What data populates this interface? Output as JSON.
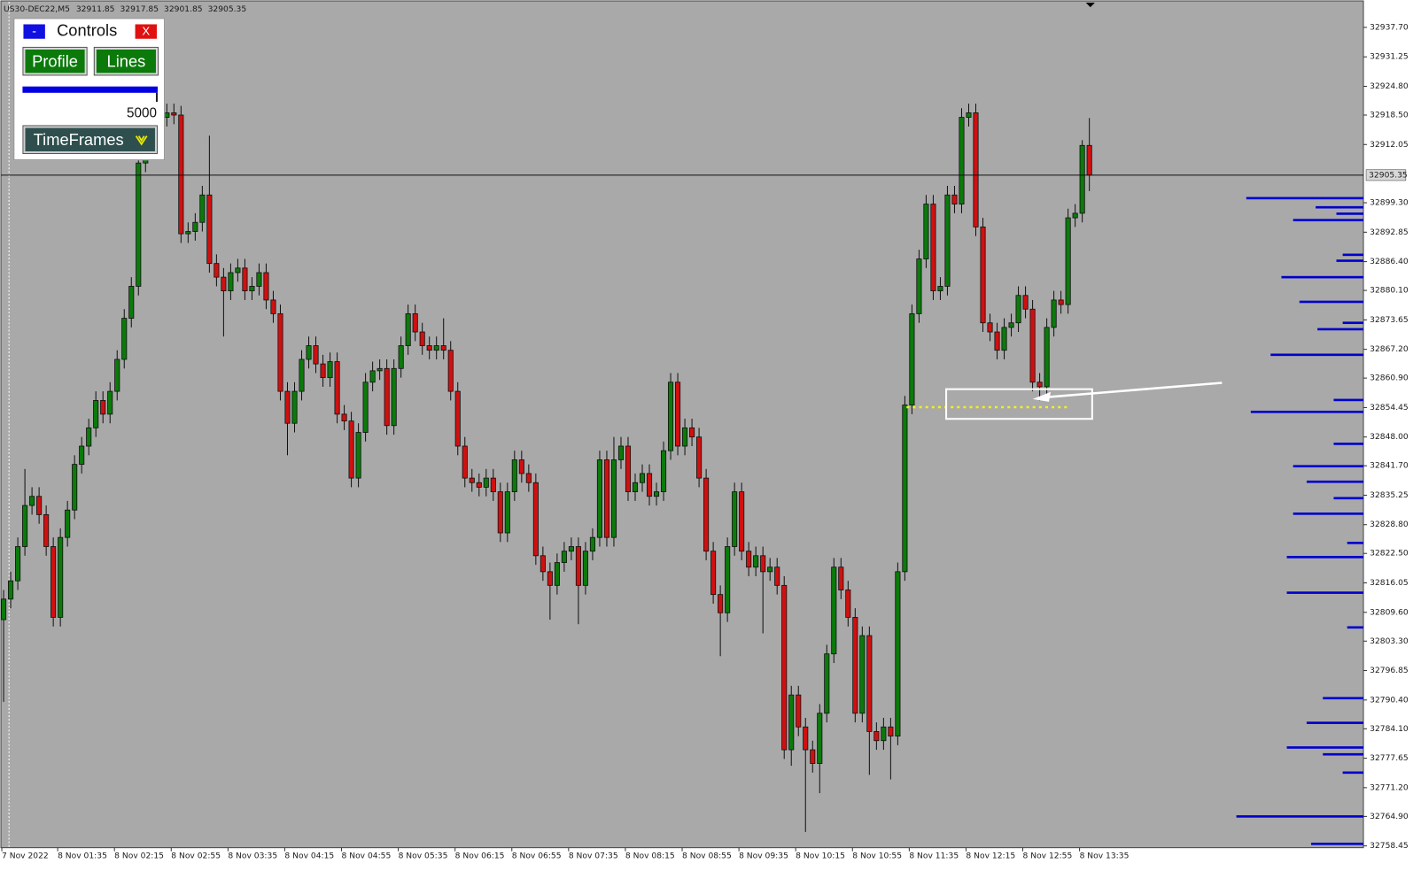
{
  "chart_data": {
    "type": "candlestick",
    "title": "US30-DEC22,M5",
    "categories": [
      "7 Nov 2022",
      null,
      null,
      null,
      null,
      null,
      null,
      null,
      "8 Nov 01:35",
      null,
      null,
      null,
      null,
      null,
      null,
      null,
      "8 Nov 02:15",
      null,
      null,
      null,
      null,
      null,
      null,
      null,
      "8 Nov 02:55",
      null,
      null,
      null,
      null,
      null,
      null,
      null,
      "8 Nov 03:35",
      null,
      null,
      null,
      null,
      null,
      null,
      null,
      "8 Nov 04:15",
      null,
      null,
      null,
      null,
      null,
      null,
      null,
      "8 Nov 04:55",
      null,
      null,
      null,
      null,
      null,
      null,
      null,
      "8 Nov 05:35",
      null,
      null,
      null,
      null,
      null,
      null,
      null,
      "8 Nov 06:15",
      null,
      null,
      null,
      null,
      null,
      null,
      null,
      "8 Nov 06:55",
      null,
      null,
      null,
      null,
      null,
      null,
      null,
      "8 Nov 07:35",
      null,
      null,
      null,
      null,
      null,
      null,
      null,
      "8 Nov 08:15",
      null,
      null,
      null,
      null,
      null,
      null,
      null,
      "8 Nov 08:55",
      null,
      null,
      null,
      null,
      null,
      null,
      null,
      "8 Nov 09:35",
      null,
      null,
      null,
      null,
      null,
      null,
      null,
      "8 Nov 10:15",
      null,
      null,
      null,
      null,
      null,
      null,
      null,
      "8 Nov 10:55",
      null,
      null,
      null,
      null,
      null,
      null,
      null,
      "8 Nov 11:35",
      null,
      null,
      null,
      null,
      null,
      null,
      null,
      "8 Nov 12:15",
      null,
      null,
      null,
      null,
      null,
      null,
      null,
      "8 Nov 12:55",
      null,
      null,
      null,
      null,
      null,
      null,
      null,
      "8 Nov 13:35",
      null
    ],
    "open": [
      32808,
      32812.5,
      32816.5,
      32824,
      32833,
      32835,
      32831,
      32824,
      32808.5,
      32826,
      32832,
      32842,
      32846,
      32850,
      32856,
      32853,
      32858,
      32865,
      32874,
      32881,
      32908,
      32914,
      32916,
      32918,
      32919,
      32918.5,
      32892.5,
      32893,
      32895,
      32901,
      32886,
      32883,
      32880,
      32884,
      32885,
      32880,
      32881,
      32884,
      32878,
      32875,
      32858,
      32851,
      32858,
      32865,
      32868,
      32864,
      32861,
      32864.5,
      32853,
      32851.5,
      32839,
      32849,
      32860,
      32862.5,
      32863,
      32850.5,
      32863,
      32868,
      32875,
      32871,
      32868,
      32867,
      32868,
      32867,
      32858,
      32846,
      32839,
      32838,
      32837,
      32839,
      32836,
      32827,
      32836,
      32843,
      32840,
      32838,
      32822,
      32818.5,
      32815.5,
      32820.5,
      32823,
      32824,
      32815.5,
      32823,
      32826,
      32843,
      32826,
      32843,
      32846,
      32836,
      32838,
      32840,
      32835,
      32836,
      32845,
      32860,
      32846,
      32850,
      32848,
      32839,
      32823,
      32813.5,
      32809.5,
      32824,
      32836,
      32823,
      32819.5,
      32822,
      32818.5,
      32819.5,
      32815.5,
      32779.5,
      32791.5,
      32784.5,
      32779.5,
      32776.5,
      32787.5,
      32800.5,
      32819.5,
      32814.5,
      32808.5,
      32787.5,
      32804.5,
      32783.5,
      32781.5,
      32784.5,
      32782.5,
      32818.5,
      32855,
      32875,
      32887,
      32899,
      32880,
      32881,
      32901,
      32899,
      32918,
      32919,
      32894,
      32873,
      32871,
      32867,
      32872,
      32873,
      32879,
      32876,
      32860,
      32859,
      32872,
      32878,
      32877,
      32896,
      32897,
      32911.85
    ],
    "high": [
      32814.5,
      32818.5,
      32826,
      32841,
      32837,
      32837,
      32833,
      32826,
      32828,
      32834,
      32844,
      32848,
      32852,
      32858,
      32858,
      32860,
      32867,
      32876,
      32883,
      32910,
      32916,
      32918,
      32920,
      32921,
      32921,
      32920.5,
      32895,
      32897,
      32903,
      32914,
      32888,
      32885,
      32886,
      32887,
      32887,
      32883,
      32886,
      32886,
      32880,
      32877,
      32860,
      32860,
      32867,
      32870,
      32870,
      32866,
      32866.5,
      32866.5,
      32855,
      32853.5,
      32851,
      32862,
      32864.5,
      32865,
      32865,
      32865,
      32870,
      32877,
      32877,
      32873,
      32870,
      32870,
      32874,
      32869,
      32860,
      32848,
      32841,
      32840,
      32841,
      32841,
      32838,
      32838,
      32845,
      32845,
      32842,
      32840,
      32824,
      32820.5,
      32822.5,
      32825,
      32826,
      32826,
      32825,
      32828,
      32845,
      32845,
      32848,
      32848,
      32848,
      32840,
      32842,
      32842,
      32838,
      32847,
      32862,
      32862,
      32852,
      32852,
      32850,
      32841,
      32825,
      32815.5,
      32826,
      32838,
      32838,
      32825,
      32824,
      32824,
      32821.5,
      32821.5,
      32817.5,
      32793.5,
      32793.5,
      32786.5,
      32781.5,
      32789.5,
      32802.5,
      32821.5,
      32821.5,
      32816.5,
      32810.5,
      32806.5,
      32806.5,
      32785.5,
      32786.5,
      32786.5,
      32820.5,
      32857,
      32877,
      32889,
      32901,
      32901,
      32883,
      32903,
      32903,
      32920,
      32921,
      32921,
      32896,
      32875,
      32873,
      32874,
      32875,
      32881,
      32881,
      32878,
      32862,
      32874,
      32880,
      32880,
      32898,
      32899,
      32913,
      32917.85
    ],
    "low": [
      32790,
      32810.5,
      32814.5,
      32822,
      32831,
      32829,
      32822,
      32806.5,
      32806.5,
      32824,
      32830,
      32840,
      32844,
      32848,
      32851,
      32851,
      32856,
      32863,
      32872,
      32879,
      32906,
      32912,
      32914,
      32916,
      32916.5,
      32890.5,
      32890.5,
      32891,
      32893,
      32884,
      32881,
      32870,
      32878,
      32882,
      32878,
      32878,
      32879,
      32876,
      32873,
      32856,
      32844,
      32849,
      32856,
      32863,
      32862,
      32859,
      32859,
      32851,
      32849.5,
      32837,
      32837,
      32847,
      32858,
      32860.5,
      32848.5,
      32848.5,
      32861,
      32866,
      32869,
      32866,
      32865,
      32865,
      32865,
      32856,
      32844,
      32837,
      32836,
      32835,
      32835,
      32834,
      32825,
      32825,
      32834,
      32838,
      32836,
      32820,
      32816.5,
      32808,
      32813.5,
      32818.5,
      32821,
      32807,
      32813.5,
      32821,
      32824,
      32824,
      32824,
      32841,
      32834,
      32834,
      32836,
      32833,
      32833,
      32834,
      32843,
      32844,
      32844,
      32846,
      32837,
      32821,
      32811.5,
      32800,
      32807.5,
      32822,
      32821,
      32817.5,
      32817.5,
      32805,
      32816.5,
      32813.5,
      32777.5,
      32776,
      32782.5,
      32761.5,
      32774.5,
      32770,
      32785.5,
      32798.5,
      32812.5,
      32806.5,
      32785.5,
      32785.5,
      32774,
      32779.5,
      32779.5,
      32773,
      32780.5,
      32816.5,
      32853,
      32873,
      32885,
      32878,
      32878,
      32879,
      32897,
      32897,
      32916,
      32892,
      32871,
      32869,
      32865,
      32865,
      32870,
      32871,
      32874,
      32858,
      32856,
      32857,
      32870,
      32875,
      32875,
      32894,
      32895,
      32901.85
    ],
    "close": [
      32812.5,
      32816.5,
      32824,
      32833,
      32835,
      32831,
      32824,
      32808.5,
      32826,
      32832,
      32842,
      32846,
      32850,
      32856,
      32853,
      32858,
      32865,
      32874,
      32881,
      32908,
      32914,
      32916,
      32918,
      32919,
      32918.5,
      32892.5,
      32893,
      32895,
      32901,
      32886,
      32883,
      32880,
      32884,
      32885,
      32880,
      32881,
      32884,
      32878,
      32875,
      32858,
      32851,
      32858,
      32865,
      32868,
      32864,
      32861,
      32864.5,
      32853,
      32851.5,
      32839,
      32849,
      32860,
      32862.5,
      32863,
      32850.5,
      32863,
      32868,
      32875,
      32871,
      32868,
      32867,
      32868,
      32867,
      32858,
      32846,
      32839,
      32838,
      32837,
      32839,
      32836,
      32827,
      32836,
      32843,
      32840,
      32838,
      32822,
      32818.5,
      32815.5,
      32820.5,
      32823,
      32824,
      32815.5,
      32823,
      32826,
      32843,
      32826,
      32843,
      32846,
      32836,
      32838,
      32840,
      32835,
      32836,
      32845,
      32860,
      32846,
      32850,
      32848,
      32839,
      32823,
      32813.5,
      32809.5,
      32824,
      32836,
      32823,
      32819.5,
      32822,
      32818.5,
      32819.5,
      32815.5,
      32779.5,
      32791.5,
      32784.5,
      32779.5,
      32776.5,
      32787.5,
      32800.5,
      32819.5,
      32814.5,
      32808.5,
      32787.5,
      32804.5,
      32783.5,
      32781.5,
      32784.5,
      32782.5,
      32818.5,
      32855,
      32875,
      32887,
      32899,
      32880,
      32881,
      32901,
      32899,
      32918,
      32919,
      32894,
      32873,
      32871,
      32867,
      32872,
      32873,
      32879,
      32876,
      32860,
      32859,
      32872,
      32878,
      32877,
      32896,
      32897,
      32911.85,
      32905.35
    ],
    "up_color": "#0b7a0b",
    "down_color": "#d01010",
    "ylim": [
      32758,
      32943.7
    ],
    "yticks": [
      {
        "value": 32937.7,
        "label": "32937.70"
      },
      32931.25,
      {
        "value": 32924.8,
        "label": "32924.80"
      },
      {
        "value": 32918.5,
        "label": "32918.50"
      },
      32912.05,
      {
        "value": 32899.3,
        "label": "32899.30"
      },
      32892.85,
      {
        "value": 32886.4,
        "label": "32886.40"
      },
      {
        "value": 32880.1,
        "label": "32880.10"
      },
      32873.65,
      {
        "value": 32867.2,
        "label": "32867.20"
      },
      {
        "value": 32860.9,
        "label": "32860.90"
      },
      32854.45,
      {
        "value": 32848,
        "label": "32848.00"
      },
      {
        "value": 32841.7,
        "label": "32841.70"
      },
      32835.25,
      {
        "value": 32828.8,
        "label": "32828.80"
      },
      {
        "value": 32822.5,
        "label": "32822.50"
      },
      32816.05,
      {
        "value": 32809.6,
        "label": "32809.60"
      },
      {
        "value": 32803.3,
        "label": "32803.30"
      },
      32796.85,
      {
        "value": 32790.4,
        "label": "32790.40"
      },
      {
        "value": 32784.1,
        "label": "32784.10"
      },
      32777.65,
      {
        "value": 32771.2,
        "label": "32771.20"
      },
      {
        "value": 32764.9,
        "label": "32764.90"
      },
      32758.45
    ],
    "grid": false,
    "profile": {
      "color": "#0000cc",
      "prices": [
        32900.3,
        32898.3,
        32896.9,
        32895.5,
        32887.9,
        32886.6,
        32883,
        32877.6,
        32873,
        32871.6,
        32866,
        32856.1,
        32853.5,
        32846.5,
        32841.6,
        32838.2,
        32834.6,
        32831.2,
        32824.8,
        32821.7,
        32813.9,
        32806.3,
        32790.8,
        32785.4,
        32780,
        32778.5,
        32774.5,
        32764.9,
        32758.9
      ],
      "values": [
        130,
        53,
        30,
        78,
        23,
        30,
        91,
        71,
        23,
        51,
        103,
        33,
        125,
        33,
        78,
        63,
        33,
        78,
        18,
        85,
        85,
        18,
        45,
        63,
        85,
        45,
        23,
        141,
        58
      ]
    }
  },
  "controls": {
    "minimize": "-",
    "title": "Controls",
    "close": "X",
    "buttons": [
      "Profile",
      "Lines"
    ],
    "slider_value": 5000,
    "dropdown": "TimeFrames"
  }
}
